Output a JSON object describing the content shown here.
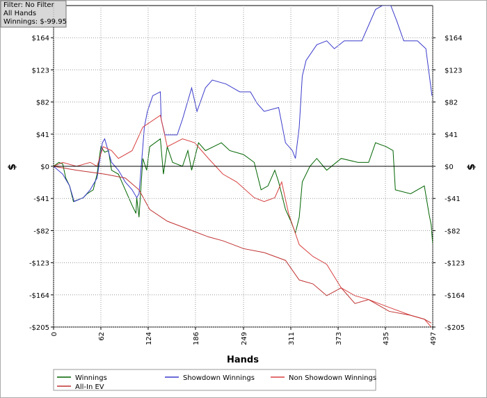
{
  "chart_data": {
    "type": "line",
    "annotations": [
      "Filter: No Filter",
      "All Hands",
      "Winnings: $-99.95"
    ],
    "x_label": "Hands",
    "y_label": "$",
    "xlim": [
      0,
      497
    ],
    "xticks": [
      0,
      62,
      124,
      186,
      249,
      311,
      373,
      435,
      497
    ],
    "ylim": [
      -205,
      205
    ],
    "yticks": [
      {
        "value": -205,
        "label": "-$205"
      },
      {
        "value": -164,
        "label": "-$164"
      },
      {
        "value": -123,
        "label": "-$123"
      },
      {
        "value": -82,
        "label": "-$82"
      },
      {
        "value": -41,
        "label": "-$41"
      },
      {
        "value": 0,
        "label": "$0"
      },
      {
        "value": 41,
        "label": "$41"
      },
      {
        "value": 82,
        "label": "$82"
      },
      {
        "value": 123,
        "label": "$123"
      },
      {
        "value": 164,
        "label": "$164"
      }
    ],
    "grid": true,
    "series": [
      {
        "name": "Winnings",
        "color": "#006400",
        "x": [
          0,
          7,
          12,
          16,
          21,
          26,
          39,
          44,
          52,
          57,
          62,
          67,
          72,
          76,
          85,
          94,
          103,
          108,
          109,
          112,
          117,
          122,
          126,
          140,
          144,
          149,
          156,
          169,
          176,
          181,
          190,
          199,
          220,
          231,
          249,
          263,
          272,
          281,
          290,
          295,
          304,
          311,
          317,
          322,
          326,
          336,
          345,
          358,
          377,
          399,
          413,
          422,
          436,
          445,
          448,
          468,
          486,
          492,
          495,
          497
        ],
        "values": [
          0,
          5,
          3,
          -15,
          -25,
          -45,
          -40,
          -35,
          -30,
          -10,
          25,
          18,
          20,
          -5,
          -10,
          -30,
          -50,
          -60,
          -40,
          -65,
          10,
          -5,
          25,
          35,
          -10,
          25,
          5,
          0,
          20,
          -5,
          30,
          20,
          30,
          20,
          15,
          5,
          -30,
          -25,
          -5,
          -20,
          -55,
          -70,
          -85,
          -65,
          -20,
          0,
          10,
          -5,
          10,
          5,
          5,
          30,
          25,
          20,
          -30,
          -35,
          -25,
          -60,
          -75,
          -99.95
        ]
      },
      {
        "name": "Showdown Winnings",
        "color": "#3a3acc",
        "x": [
          0,
          12,
          21,
          27,
          39,
          48,
          57,
          64,
          67,
          76,
          85,
          94,
          103,
          109,
          112,
          117,
          119,
          123,
          130,
          140,
          141,
          146,
          162,
          169,
          181,
          188,
          199,
          208,
          226,
          244,
          258,
          267,
          276,
          295,
          304,
          313,
          317,
          322,
          326,
          331,
          345,
          358,
          368,
          381,
          404,
          422,
          431,
          442,
          450,
          459,
          477,
          488,
          492,
          496
        ],
        "values": [
          0,
          -10,
          -25,
          -45,
          -40,
          -30,
          -15,
          30,
          35,
          5,
          -5,
          -20,
          -30,
          -40,
          -35,
          25,
          50,
          70,
          90,
          95,
          60,
          40,
          40,
          60,
          100,
          70,
          100,
          110,
          105,
          95,
          95,
          80,
          70,
          75,
          30,
          20,
          10,
          50,
          115,
          135,
          155,
          160,
          150,
          160,
          160,
          200,
          205,
          205,
          185,
          160,
          160,
          150,
          120,
          90
        ]
      },
      {
        "name": "Non Showdown Winnings",
        "color": "#d84040",
        "x": [
          0,
          12,
          30,
          48,
          57,
          65,
          76,
          85,
          103,
          117,
          140,
          149,
          169,
          185,
          203,
          222,
          240,
          263,
          276,
          290,
          299,
          308,
          322,
          340,
          358,
          377,
          395,
          413,
          440,
          468,
          486,
          495
        ],
        "values": [
          0,
          5,
          0,
          5,
          0,
          25,
          20,
          10,
          20,
          50,
          65,
          25,
          35,
          30,
          10,
          -10,
          -20,
          -40,
          -45,
          -40,
          -20,
          -60,
          -100,
          -115,
          -125,
          -155,
          -165,
          -170,
          -180,
          -190,
          -195,
          -205
        ]
      },
      {
        "name": "All-In EV",
        "color": "#c03030",
        "x": [
          0,
          30,
          67,
          94,
          112,
          126,
          149,
          176,
          203,
          222,
          249,
          276,
          304,
          322,
          340,
          358,
          377,
          395,
          413,
          440,
          468,
          486,
          495
        ],
        "values": [
          0,
          -5,
          -10,
          -15,
          -30,
          -55,
          -70,
          -80,
          -90,
          -95,
          -105,
          -110,
          -120,
          -145,
          -150,
          -165,
          -155,
          -175,
          -170,
          -185,
          -190,
          -195,
          -200
        ]
      }
    ]
  }
}
